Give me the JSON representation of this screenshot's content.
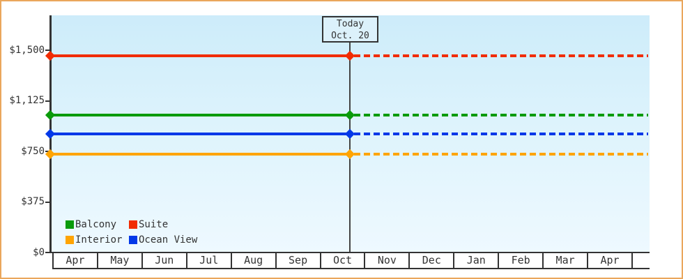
{
  "chart_data": {
    "type": "line",
    "title": "",
    "description": "Cruise cabin price tracker: flat price per cabin category; solid line = price history up to today, dashed line = projection after today",
    "x_axis": {
      "label": "",
      "categories": [
        "Apr",
        "May",
        "Jun",
        "Jul",
        "Aug",
        "Sep",
        "Oct",
        "Nov",
        "Dec",
        "Jan",
        "Feb",
        "Mar",
        "Apr"
      ]
    },
    "y_axis": {
      "label": "",
      "ticks": [
        {
          "label": "$0",
          "value": 0
        },
        {
          "label": "$375",
          "value": 375
        },
        {
          "label": "$750",
          "value": 750
        },
        {
          "label": "$1,125",
          "value": 1125
        },
        {
          "label": "$1,500",
          "value": 1500
        }
      ],
      "range": [
        0,
        1760
      ],
      "grid": false
    },
    "series": [
      {
        "name": "Suite",
        "color": "#f12c02",
        "value": 1460,
        "style": "solid before today, dashed after"
      },
      {
        "name": "Balcony",
        "color": "#0a9b0a",
        "value": 1020,
        "style": "solid before today, dashed after"
      },
      {
        "name": "Ocean View",
        "color": "#0238e8",
        "value": 880,
        "style": "solid before today, dashed after"
      },
      {
        "name": "Interior",
        "color": "#ffa402",
        "value": 730,
        "style": "solid before today, dashed after"
      }
    ],
    "today": {
      "line1": "Today",
      "line2": "Oct. 20",
      "month": "Oct",
      "day": 20
    },
    "legend": {
      "position": "bottom-left inside plot",
      "entries": [
        {
          "label": "Balcony",
          "color": "#0a9b0a"
        },
        {
          "label": "Suite",
          "color": "#f12c02"
        },
        {
          "label": "Interior",
          "color": "#ffa402"
        },
        {
          "label": "Ocean View",
          "color": "#0238e8"
        }
      ]
    }
  },
  "colors": {
    "frame_border": "#eaa75c",
    "axis": "#333333",
    "text": "#333333",
    "today_line": "#444444",
    "plot_bg_top": "#cdecfa",
    "plot_bg_bottom": "#eef9ff",
    "month_strip_bg": "#ffffff",
    "today_box_bg": "#dcf1fb"
  }
}
